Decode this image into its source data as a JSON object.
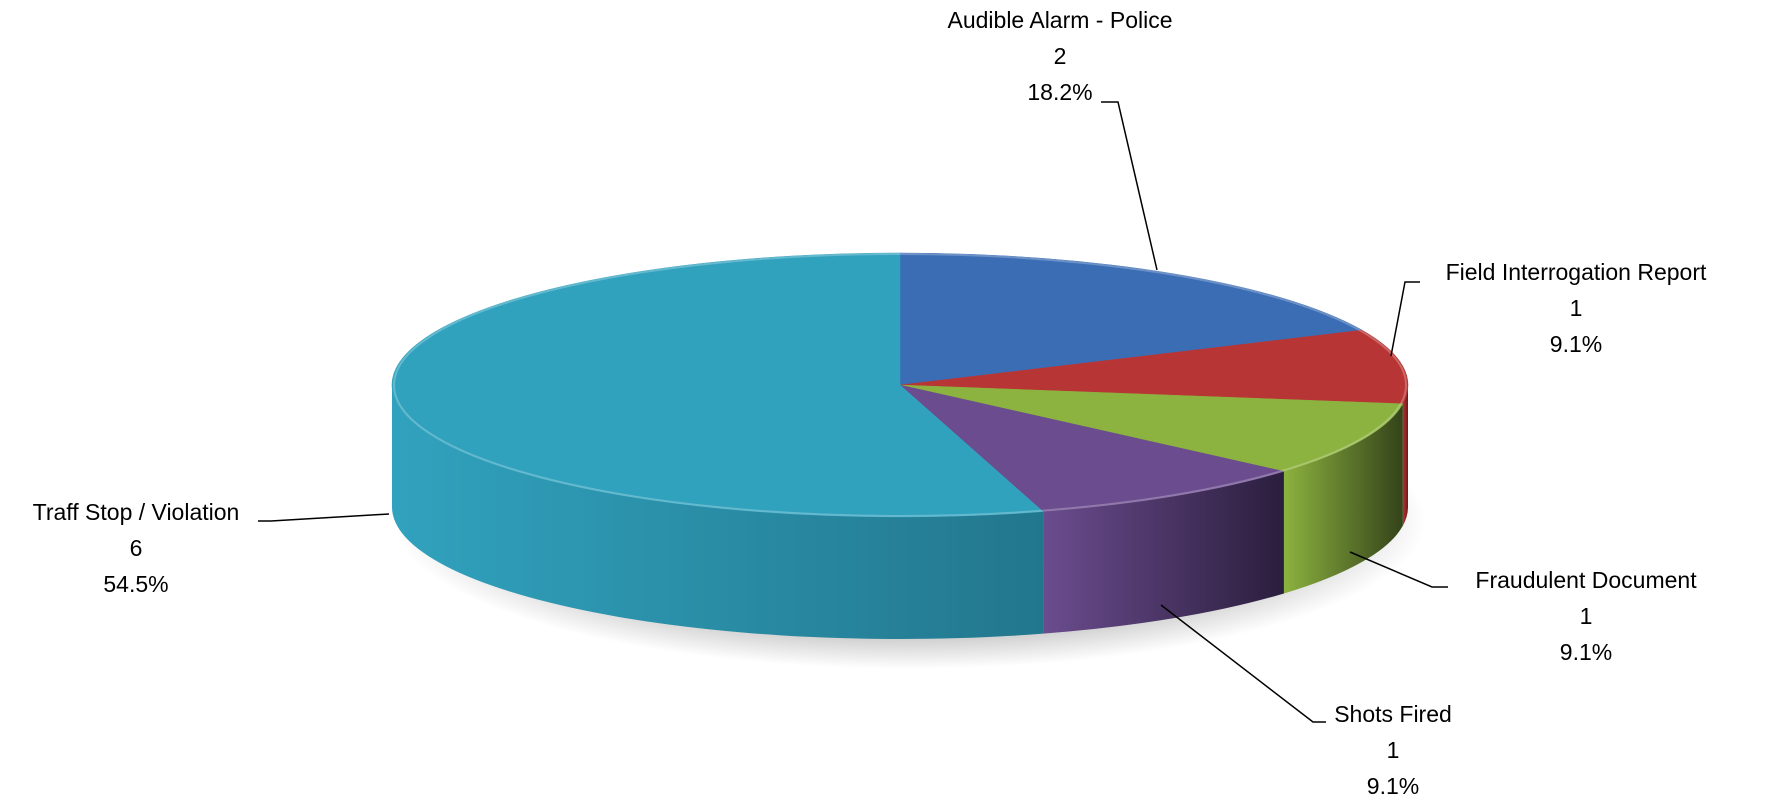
{
  "chart_data": {
    "type": "pie",
    "title": "",
    "style": "3d",
    "slices": [
      {
        "name": "Audible Alarm - Police",
        "value": 2,
        "percent_label": "18.2%",
        "color": "#3B6DB5",
        "side_color": "#24467A"
      },
      {
        "name": "Field Interrogation Report",
        "value": 1,
        "percent_label": "9.1%",
        "color": "#B83535",
        "side_color": "#6E1717"
      },
      {
        "name": "Fraudulent Document",
        "value": 1,
        "percent_label": "9.1%",
        "color": "#8CB23F",
        "side_color": "#34431A"
      },
      {
        "name": "Shots Fired",
        "value": 1,
        "percent_label": "9.1%",
        "color": "#6B4C8E",
        "side_color": "#2A1E3D"
      },
      {
        "name": "Traff Stop / Violation",
        "value": 6,
        "percent_label": "54.5%",
        "color": "#31A2BE",
        "side_color": "#22778D"
      }
    ]
  }
}
